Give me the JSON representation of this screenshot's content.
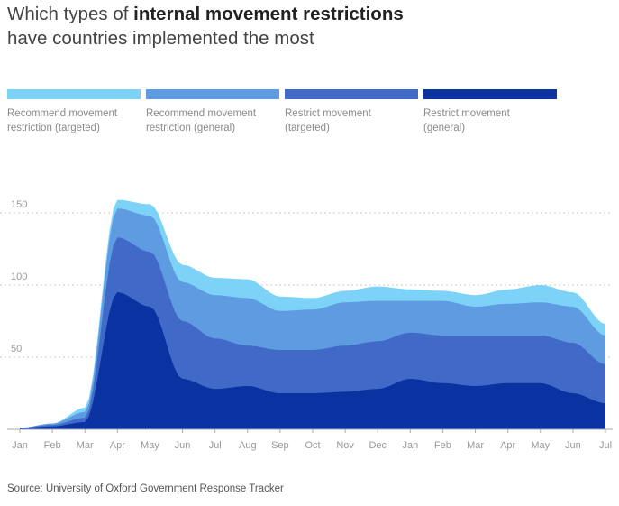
{
  "title": {
    "part1": "Which types of ",
    "bold": "internal movement restrictions",
    "part2": " have countries implemented the most"
  },
  "legend": [
    {
      "label_line1": "Recommend movement",
      "label_line2": "restriction (targeted)",
      "color": "#7dd3f7"
    },
    {
      "label_line1": "Recommend movement",
      "label_line2": "restriction (general)",
      "color": "#5f9be0"
    },
    {
      "label_line1": "Restrict movement",
      "label_line2": "(targeted)",
      "color": "#4169c8"
    },
    {
      "label_line1": "Restrict movement",
      "label_line2": "(general)",
      "color": "#0a32a0"
    }
  ],
  "source": "Source: University of Oxford Government Response Tracker",
  "chart_data": {
    "type": "area",
    "stacked": true,
    "x": [
      "2020-01",
      "2020-02",
      "2020-03",
      "2020-04",
      "2020-05",
      "2020-06",
      "2020-07",
      "2020-08",
      "2020-09",
      "2020-10",
      "2020-11",
      "2020-12",
      "2021-01",
      "2021-02",
      "2021-03",
      "2021-04",
      "2021-05",
      "2021-06",
      "2021-07"
    ],
    "x_tick_labels": [
      "Jan",
      "Feb",
      "Mar",
      "Apr",
      "May",
      "Jun",
      "Jul",
      "Aug",
      "Sep",
      "Oct",
      "Nov",
      "Dec",
      "Jan",
      "Feb",
      "Mar",
      "Apr",
      "May",
      "Jun",
      "Jul"
    ],
    "ylim": [
      0,
      160
    ],
    "yticks": [
      50,
      100,
      150
    ],
    "grid": true,
    "series": [
      {
        "name": "Restrict movement (general)",
        "color": "#0a32a0",
        "values": [
          1,
          2,
          5,
          95,
          85,
          35,
          28,
          30,
          25,
          25,
          26,
          28,
          35,
          32,
          30,
          32,
          32,
          25,
          18
        ]
      },
      {
        "name": "Restrict movement (targeted)",
        "color": "#4169c8",
        "values": [
          0,
          1,
          3,
          38,
          38,
          40,
          35,
          28,
          30,
          30,
          32,
          33,
          32,
          33,
          35,
          33,
          33,
          35,
          27
        ]
      },
      {
        "name": "Recommend movement restriction (general)",
        "color": "#5f9be0",
        "values": [
          0,
          1,
          4,
          20,
          25,
          27,
          30,
          33,
          27,
          28,
          30,
          28,
          22,
          24,
          20,
          22,
          23,
          25,
          20
        ]
      },
      {
        "name": "Recommend movement restriction (targeted)",
        "color": "#7dd3f7",
        "values": [
          0,
          0,
          3,
          6,
          8,
          12,
          12,
          13,
          10,
          8,
          8,
          10,
          8,
          7,
          8,
          10,
          12,
          10,
          8
        ]
      }
    ]
  }
}
